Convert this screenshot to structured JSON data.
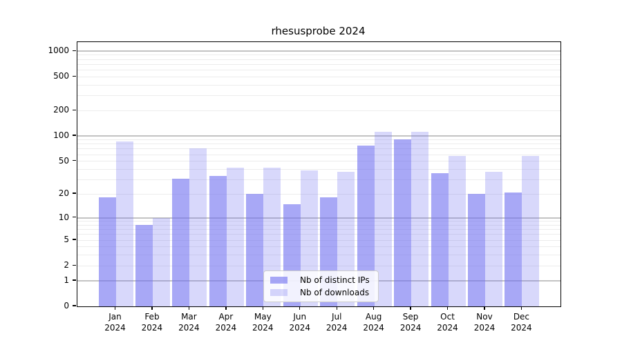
{
  "chart_data": {
    "type": "bar",
    "title": "rhesusprobe 2024",
    "categories": [
      "Jan 2024",
      "Feb 2024",
      "Mar 2024",
      "Apr 2024",
      "May 2024",
      "Jun 2024",
      "Jul 2024",
      "Aug 2024",
      "Sep 2024",
      "Oct 2024",
      "Nov 2024",
      "Dec 2024"
    ],
    "series": [
      {
        "name": "Nb of distinct IPs",
        "values": [
          18,
          8,
          31,
          33,
          20,
          15,
          18,
          77,
          91,
          36,
          20,
          21
        ]
      },
      {
        "name": "Nb of downloads",
        "values": [
          86,
          10,
          71,
          42,
          42,
          39,
          37,
          112,
          113,
          58,
          37,
          58
        ]
      }
    ],
    "yscale": "log1p",
    "yticks": [
      0,
      1,
      2,
      5,
      10,
      20,
      50,
      100,
      200,
      500,
      1000
    ],
    "yminor_ticks": [
      2,
      3,
      4,
      5,
      6,
      7,
      8,
      9,
      20,
      30,
      40,
      50,
      60,
      70,
      80,
      90,
      200,
      300,
      400,
      500,
      600,
      700,
      800,
      900
    ],
    "ylim": [
      0,
      1284
    ],
    "xlabel": "",
    "ylabel": "",
    "grid": "horizontal, major+minor, behind bars",
    "legend_position": "lower center"
  },
  "ui": {
    "colors": {
      "bar_ips": "rgba(110,110,240,0.60)",
      "bar_downloads": "rgba(110,110,240,0.27)",
      "grid_major": "#c3c3c3",
      "grid_minor": "#ececec",
      "axis": "#000000",
      "legend_bg": "rgba(255,255,255,0.85)",
      "legend_border": "#cccccc",
      "background": "#ffffff"
    }
  }
}
